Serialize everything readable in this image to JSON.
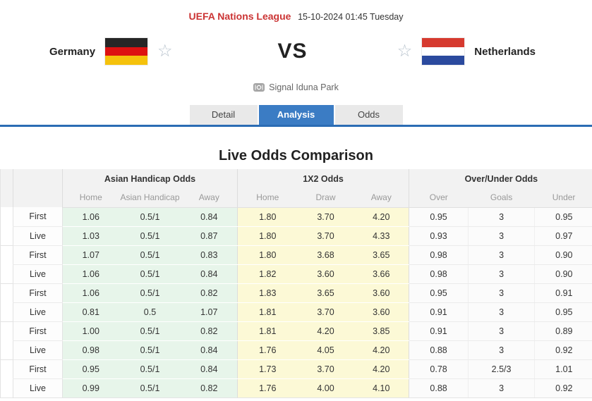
{
  "page_header": {
    "league": "UEFA Nations League",
    "datetime": "15-10-2024 01:45 Tuesday"
  },
  "match": {
    "home_team": "Germany",
    "away_team": "Netherlands",
    "vs_label": "VS",
    "venue": "Signal Iduna Park"
  },
  "icons": {
    "favorite_star": "☆",
    "venue_icon": "stadium-icon"
  },
  "tabs": {
    "detail": "Detail",
    "analysis": "Analysis",
    "odds": "Odds",
    "active_tab": "Analysis"
  },
  "section_title": "Live Odds Comparison",
  "odds_table": {
    "group_headers": [
      "Asian Handicap Odds",
      "1X2 Odds",
      "Over/Under Odds"
    ],
    "sub_headers": [
      "Home",
      "Asian Handicap",
      "Away",
      "Home",
      "Draw",
      "Away",
      "Over",
      "Goals",
      "Under"
    ],
    "rows": [
      {
        "label": "First",
        "values": [
          "1.06",
          "0.5/1",
          "0.84",
          "1.80",
          "3.70",
          "4.20",
          "0.95",
          "3",
          "0.95"
        ]
      },
      {
        "label": "Live",
        "values": [
          "1.03",
          "0.5/1",
          "0.87",
          "1.80",
          "3.70",
          "4.33",
          "0.93",
          "3",
          "0.97"
        ]
      },
      {
        "label": "First",
        "values": [
          "1.07",
          "0.5/1",
          "0.83",
          "1.80",
          "3.68",
          "3.65",
          "0.98",
          "3",
          "0.90"
        ]
      },
      {
        "label": "Live",
        "values": [
          "1.06",
          "0.5/1",
          "0.84",
          "1.82",
          "3.60",
          "3.66",
          "0.98",
          "3",
          "0.90"
        ]
      },
      {
        "label": "First",
        "values": [
          "1.06",
          "0.5/1",
          "0.82",
          "1.83",
          "3.65",
          "3.60",
          "0.95",
          "3",
          "0.91"
        ]
      },
      {
        "label": "Live",
        "values": [
          "0.81",
          "0.5",
          "1.07",
          "1.81",
          "3.70",
          "3.60",
          "0.91",
          "3",
          "0.95"
        ]
      },
      {
        "label": "First",
        "values": [
          "1.00",
          "0.5/1",
          "0.82",
          "1.81",
          "4.20",
          "3.85",
          "0.91",
          "3",
          "0.89"
        ]
      },
      {
        "label": "Live",
        "values": [
          "0.98",
          "0.5/1",
          "0.84",
          "1.76",
          "4.05",
          "4.20",
          "0.88",
          "3",
          "0.92"
        ]
      },
      {
        "label": "First",
        "values": [
          "0.95",
          "0.5/1",
          "0.84",
          "1.73",
          "3.70",
          "4.20",
          "0.78",
          "2.5/3",
          "1.01"
        ]
      },
      {
        "label": "Live",
        "values": [
          "0.99",
          "0.5/1",
          "0.82",
          "1.76",
          "4.00",
          "4.10",
          "0.88",
          "3",
          "0.92"
        ]
      }
    ]
  },
  "colors": {
    "league_red": "#cb3434",
    "accent_blue": "#3b7cc4",
    "divider_blue": "#2b6cb4",
    "asian_handicap_bg": "#e7f5ea",
    "x12_bg": "#fcf9d6",
    "over_under_bg": "#fbfbfb",
    "germany_flag": [
      "#262626",
      "#dd1111",
      "#f5c20c"
    ],
    "netherlands_flag": [
      "#d63a2f",
      "#ffffff",
      "#2b4a9e"
    ]
  }
}
